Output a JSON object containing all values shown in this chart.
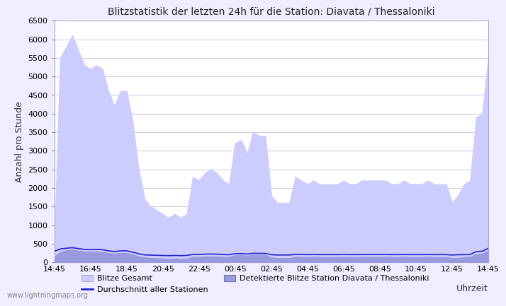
{
  "title": "Blitzstatistik der letzten 24h für die Station: Diavata / Thessaloniki",
  "xlabel": "Uhrzeit",
  "ylabel": "Anzahl pro Stunde",
  "watermark": "www.lightningmaps.org",
  "x_labels": [
    "14:45",
    "16:45",
    "18:45",
    "20:45",
    "22:45",
    "00:45",
    "02:45",
    "04:45",
    "06:45",
    "08:45",
    "10:45",
    "12:45",
    "14:45"
  ],
  "ylim": [
    0,
    6500
  ],
  "yticks": [
    0,
    500,
    1000,
    1500,
    2000,
    2500,
    3000,
    3500,
    4000,
    4500,
    5000,
    5500,
    6000,
    6500
  ],
  "bg_color": "#eeeeff",
  "plot_bg_color": "#ffffff",
  "grid_color": "#ccccdd",
  "fill_gesamt_color": "#ccccff",
  "fill_station_color": "#9999dd",
  "avg_line_color": "#2222cc",
  "gesamt_data": [
    350,
    5500,
    5800,
    6100,
    5700,
    5300,
    5200,
    5300,
    5200,
    4600,
    4200,
    4600,
    4600,
    3800,
    2500,
    1700,
    1500,
    1400,
    1300,
    1200,
    1300,
    1200,
    1300,
    2300,
    2200,
    2400,
    2500,
    2400,
    2200,
    2100,
    3200,
    3300,
    2900,
    3500,
    3400,
    3400,
    1800,
    1600,
    1600,
    1600,
    2300,
    2200,
    2100,
    2200,
    2100,
    2100,
    2100,
    2100,
    2200,
    2100,
    2100,
    2200,
    2200,
    2200,
    2200,
    2200,
    2100,
    2100,
    2200,
    2100,
    2100,
    2100,
    2200,
    2100,
    2100,
    2100,
    1600,
    1800,
    2100,
    2200,
    3900,
    4000,
    5500
  ],
  "station_data": [
    150,
    280,
    320,
    340,
    310,
    290,
    280,
    290,
    280,
    250,
    230,
    250,
    250,
    210,
    160,
    130,
    120,
    110,
    100,
    90,
    100,
    90,
    100,
    150,
    145,
    155,
    160,
    155,
    145,
    140,
    190,
    195,
    175,
    205,
    200,
    200,
    130,
    115,
    115,
    115,
    150,
    145,
    140,
    145,
    140,
    140,
    140,
    140,
    145,
    140,
    140,
    145,
    145,
    145,
    145,
    145,
    140,
    140,
    145,
    140,
    140,
    140,
    145,
    140,
    140,
    140,
    115,
    120,
    140,
    145,
    220,
    230,
    320
  ],
  "avg_data": [
    300,
    360,
    380,
    395,
    370,
    350,
    340,
    350,
    340,
    310,
    290,
    310,
    310,
    275,
    230,
    200,
    195,
    190,
    185,
    180,
    185,
    180,
    185,
    215,
    210,
    220,
    225,
    220,
    210,
    205,
    235,
    238,
    225,
    245,
    242,
    242,
    205,
    198,
    198,
    198,
    215,
    210,
    208,
    210,
    208,
    208,
    208,
    208,
    210,
    208,
    208,
    210,
    210,
    210,
    210,
    210,
    208,
    208,
    210,
    208,
    208,
    208,
    210,
    208,
    208,
    208,
    198,
    205,
    208,
    210,
    290,
    300,
    380
  ],
  "n_points": 73,
  "legend_gesamt": "Blitze Gesamt",
  "legend_avg": "Durchschnitt aller Stationen",
  "legend_station": "Detektierte Blitze Station Diavata / Thessaloniki"
}
